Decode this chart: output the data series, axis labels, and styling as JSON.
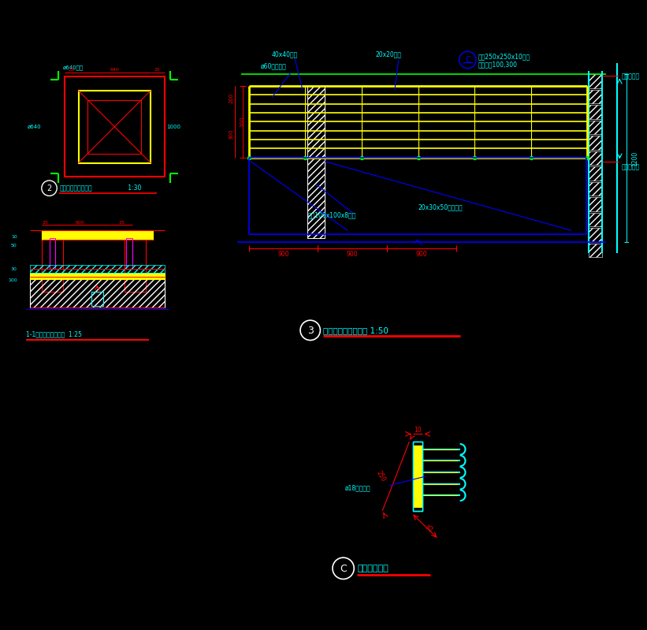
{
  "bg": "#000000",
  "Y": "#FFFF00",
  "C": "#00FFFF",
  "R": "#FF0000",
  "B": "#0000FF",
  "G": "#00FF00",
  "W": "#FFFFFF",
  "M": "#FF00FF",
  "title3": "屋面检修平台剖面图 1:50",
  "titleC": "预埋件放大图",
  "lbl_40x40": "40x40方钢",
  "lbl_20x20": "20x20方钢",
  "lbl_phi60": "ø60千秋钢管",
  "lbl_pre": "预埋250x250x10钢板",
  "lbl_center": "中心距离100,300",
  "lbl_channel": "槽钢100x100x8钢板",
  "lbl_plate": "20x30x50钢板焊接",
  "lbl_rebar": "ø18连钩钢筋",
  "lbl_arch": "见建筑平面",
  "lbl_1200": "1200",
  "lbl_900a": "900",
  "lbl_900b": "900",
  "lbl_900c": "900",
  "lbl_100": "100",
  "lbl_200": "200",
  "lbl_300": "300",
  "lbl_10": "10",
  "lbl_250": "250",
  "lbl_25": "25",
  "sec2_title": "天棚检修孔顶平面图",
  "sec2_scale": "1:30",
  "sec1_title": "1-1天棚检修孔剖面图",
  "sec1_scale": "1:25"
}
